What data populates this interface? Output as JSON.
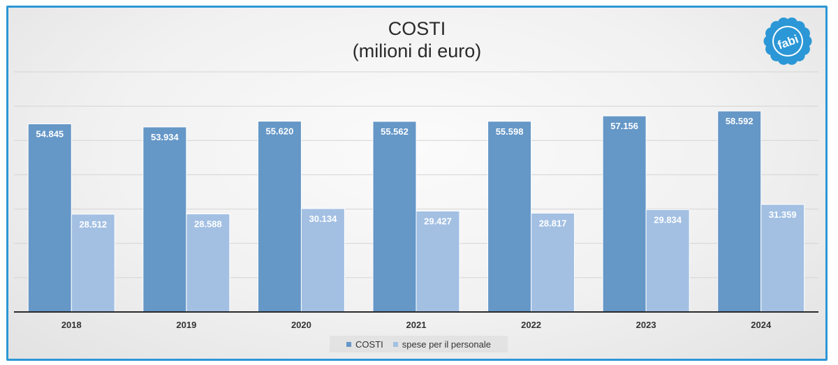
{
  "chart_data": {
    "type": "bar",
    "title": "COSTI",
    "subtitle": "(milioni di euro)",
    "categories": [
      "2018",
      "2019",
      "2020",
      "2021",
      "2022",
      "2023",
      "2024"
    ],
    "series": [
      {
        "name": "COSTI",
        "values": [
          54845,
          53934,
          55620,
          55562,
          55598,
          57156,
          58592
        ],
        "labels": [
          "54.845",
          "53.934",
          "55.620",
          "55.562",
          "55.598",
          "57.156",
          "58.592"
        ],
        "color": "#6597c7"
      },
      {
        "name": "spese per il personale",
        "values": [
          28512,
          28588,
          30134,
          29427,
          28817,
          29834,
          31359
        ],
        "labels": [
          "28.512",
          "28.588",
          "30.134",
          "29.427",
          "28.817",
          "29.834",
          "31.359"
        ],
        "color": "#a3c0e3"
      }
    ],
    "ylim": [
      0,
      70000
    ],
    "grid": true,
    "legend_position": "bottom"
  },
  "logo": {
    "text": "fabi",
    "color": "#2b97d6"
  }
}
